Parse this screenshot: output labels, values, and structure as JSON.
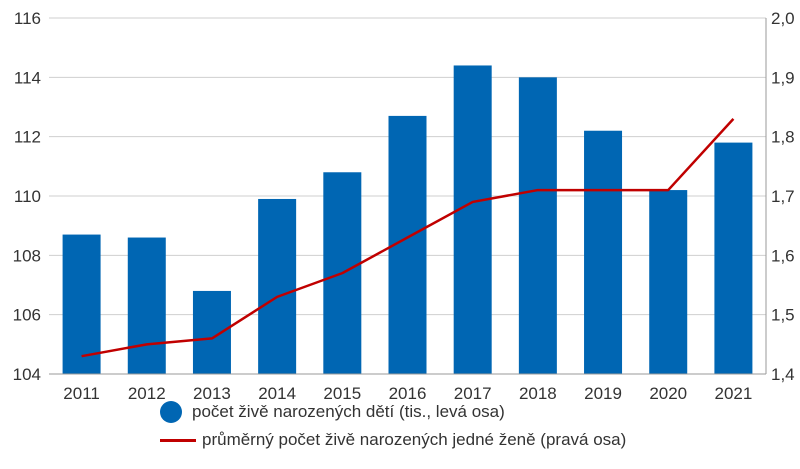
{
  "chart_data": {
    "type": "bar",
    "categories": [
      "2011",
      "2012",
      "2013",
      "2014",
      "2015",
      "2016",
      "2017",
      "2018",
      "2019",
      "2020",
      "2021"
    ],
    "series": [
      {
        "name": "počet živě narozených dětí (tis., levá osa)",
        "type": "bar",
        "axis": "left",
        "color": "#0066b3",
        "values": [
          108.7,
          108.6,
          106.8,
          109.9,
          110.8,
          112.7,
          114.4,
          114.0,
          112.2,
          110.2,
          111.8
        ]
      },
      {
        "name": "průměrný počet živě narozených jedné ženě (pravá osa)",
        "type": "line",
        "axis": "right",
        "color": "#c00000",
        "values": [
          1.43,
          1.45,
          1.46,
          1.53,
          1.57,
          1.63,
          1.69,
          1.71,
          1.71,
          1.71,
          1.83
        ]
      }
    ],
    "y_left": {
      "ylim": [
        104,
        116
      ],
      "ticks": [
        "104",
        "106",
        "108",
        "110",
        "112",
        "114",
        "116"
      ]
    },
    "y_right": {
      "ylim": [
        1.4,
        2.0
      ],
      "ticks": [
        "1,4",
        "1,5",
        "1,6",
        "1,7",
        "1,8",
        "1,9",
        "2,0"
      ]
    },
    "grid": true,
    "legend_position": "bottom"
  }
}
